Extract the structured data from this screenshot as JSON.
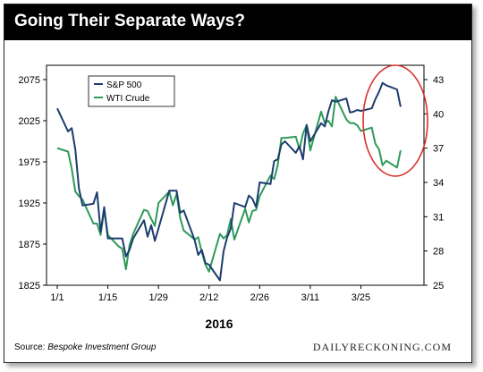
{
  "title": "Going Their Separate Ways?",
  "source": {
    "prefix": "Source: ",
    "name": "Bespoke Investment Group"
  },
  "watermark": "DAILYRECKONING.COM",
  "colors": {
    "sp500": "#1c3d6e",
    "wti": "#2e9a5a",
    "annotation": "#d9302c",
    "title_bg": "#000000"
  },
  "chart_data": {
    "type": "line",
    "title": "Going Their Separate Ways?",
    "xlabel": "2016",
    "x_ticks": [
      "1/1",
      "1/15",
      "1/29",
      "2/12",
      "2/26",
      "3/11",
      "3/25"
    ],
    "x_tick_days": [
      0,
      14,
      28,
      42,
      56,
      70,
      84
    ],
    "y_left": {
      "ticks": [
        1825,
        1875,
        1925,
        1975,
        2025,
        2075
      ],
      "range": [
        1825,
        2075
      ]
    },
    "y_right": {
      "ticks": [
        25,
        28,
        31,
        34,
        37,
        40,
        43
      ],
      "range": [
        25,
        43
      ]
    },
    "legend": {
      "position": "top-left",
      "entries": [
        "S&P 500",
        "WTI Crude"
      ]
    },
    "annotation": "circle-around-divergence-late-march",
    "series": [
      {
        "name": "S&P 500",
        "axis": "left",
        "x": [
          0,
          3,
          4,
          5,
          6,
          7,
          10,
          11,
          12,
          13,
          14,
          17,
          18,
          19,
          20,
          21,
          24,
          25,
          26,
          27,
          28,
          31,
          32,
          33,
          34,
          35,
          38,
          39,
          40,
          41,
          42,
          45,
          46,
          47,
          48,
          49,
          52,
          53,
          54,
          55,
          56,
          59,
          60,
          61,
          62,
          63,
          66,
          67,
          68,
          69,
          70,
          73,
          74,
          75,
          76,
          77,
          80,
          81,
          82,
          83,
          84,
          87,
          88,
          89,
          90,
          91,
          94,
          95
        ],
        "y": [
          2040,
          2012,
          2016,
          1990,
          1943,
          1922,
          1924,
          1938,
          1890,
          1920,
          1882,
          1882,
          1882,
          1860,
          1868,
          1882,
          1904,
          1884,
          1898,
          1879,
          1894,
          1940,
          1940,
          1940,
          1913,
          1916,
          1880,
          1862,
          1868,
          1852,
          1850,
          1831,
          1866,
          1883,
          1894,
          1925,
          1920,
          1934,
          1930,
          1920,
          1950,
          1948,
          1976,
          1978,
          1996,
          2000,
          1986,
          1994,
          1978,
          2020,
          2000,
          2022,
          2018,
          2036,
          2050,
          2048,
          2052,
          2035,
          2036,
          2038,
          2037,
          2040,
          2051,
          2060,
          2071,
          2068,
          2063,
          2042
        ]
      },
      {
        "name": "WTI Crude",
        "axis": "right",
        "x": [
          0,
          3,
          4,
          5,
          6,
          7,
          10,
          11,
          12,
          13,
          14,
          17,
          18,
          19,
          20,
          21,
          24,
          25,
          26,
          27,
          28,
          31,
          32,
          33,
          34,
          35,
          38,
          39,
          40,
          41,
          42,
          45,
          46,
          47,
          48,
          49,
          52,
          53,
          54,
          55,
          56,
          59,
          60,
          61,
          62,
          63,
          66,
          67,
          68,
          69,
          70,
          73,
          74,
          75,
          76,
          77,
          80,
          81,
          82,
          83,
          84,
          87,
          88,
          89,
          90,
          91,
          94,
          95
        ],
        "y": [
          37.0,
          36.7,
          35.2,
          33.2,
          32.8,
          32.5,
          30.4,
          30.4,
          29.4,
          31.6,
          29.4,
          28.4,
          28.2,
          26.4,
          28.5,
          29.5,
          31.6,
          31.5,
          30.8,
          30.2,
          32.2,
          33.2,
          32.0,
          33.0,
          30.9,
          29.8,
          29.0,
          29.2,
          27.9,
          26.8,
          26.2,
          29.5,
          29.1,
          29.4,
          30.8,
          29.0,
          31.7,
          30.5,
          31.5,
          31.6,
          32.8,
          34.6,
          34.3,
          35.5,
          37.9,
          37.9,
          38.0,
          36.9,
          38.3,
          39.0,
          36.8,
          40.2,
          39.2,
          39.4,
          38.9,
          41.5,
          39.5,
          39.2,
          39.2,
          39.0,
          38.5,
          38.8,
          37.4,
          36.9,
          35.5,
          35.9,
          35.3,
          36.8
        ]
      }
    ]
  }
}
